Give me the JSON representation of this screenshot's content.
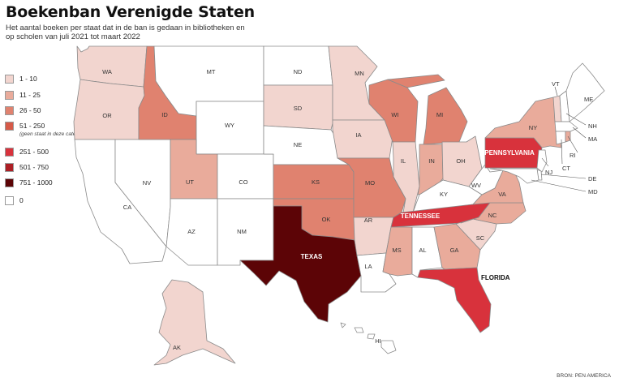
{
  "title": "Boekenban Verenigde Staten",
  "subtitle": "Het aantal boeken per staat dat in de ban is gedaan in bibliotheken en op scholen van juli 2021 tot maart 2022",
  "source": "BRON: PEN AMERICA",
  "legend": [
    {
      "label": "1 - 10",
      "color": "#f2d5cf"
    },
    {
      "label": "11 - 25",
      "color": "#e9ab9b"
    },
    {
      "label": "26 - 50",
      "color": "#e0826f"
    },
    {
      "label": "51 - 250",
      "color": "#d65a48",
      "note": "(geen staat in deze categorie)"
    },
    {
      "label": "251 - 500",
      "color": "#d8323c"
    },
    {
      "label": "501 - 750",
      "color": "#ad1f25"
    },
    {
      "label": "751 - 1000",
      "color": "#5c0406"
    },
    {
      "label": "0",
      "color": "#ffffff"
    }
  ],
  "states": {
    "WA": {
      "label": "WA",
      "color": "#f2d5cf"
    },
    "OR": {
      "label": "OR",
      "color": "#f2d5cf"
    },
    "CA": {
      "label": "CA",
      "color": "#ffffff"
    },
    "NV": {
      "label": "NV",
      "color": "#ffffff"
    },
    "ID": {
      "label": "ID",
      "color": "#e0826f"
    },
    "MT": {
      "label": "MT",
      "color": "#ffffff"
    },
    "WY": {
      "label": "WY",
      "color": "#ffffff"
    },
    "UT": {
      "label": "UT",
      "color": "#e9ab9b"
    },
    "AZ": {
      "label": "AZ",
      "color": "#ffffff"
    },
    "CO": {
      "label": "CO",
      "color": "#ffffff"
    },
    "NM": {
      "label": "NM",
      "color": "#ffffff"
    },
    "ND": {
      "label": "ND",
      "color": "#ffffff"
    },
    "SD": {
      "label": "SD",
      "color": "#f2d5cf"
    },
    "NE": {
      "label": "NE",
      "color": "#ffffff"
    },
    "KS": {
      "label": "KS",
      "color": "#e0826f"
    },
    "OK": {
      "label": "OK",
      "color": "#e0826f"
    },
    "TX": {
      "label": "TEXAS",
      "color": "#5c0406"
    },
    "MN": {
      "label": "MN",
      "color": "#f2d5cf"
    },
    "IA": {
      "label": "IA",
      "color": "#f2d5cf"
    },
    "MO": {
      "label": "MO",
      "color": "#e0826f"
    },
    "AR": {
      "label": "AR",
      "color": "#f2d5cf"
    },
    "LA": {
      "label": "LA",
      "color": "#ffffff"
    },
    "WI": {
      "label": "WI",
      "color": "#e0826f"
    },
    "IL": {
      "label": "IL",
      "color": "#f2d5cf"
    },
    "MI": {
      "label": "MI",
      "color": "#e0826f"
    },
    "IN": {
      "label": "IN",
      "color": "#e9ab9b"
    },
    "OH": {
      "label": "OH",
      "color": "#f2d5cf"
    },
    "KY": {
      "label": "KY",
      "color": "#ffffff"
    },
    "TN": {
      "label": "TENNESSEE",
      "color": "#d8323c"
    },
    "MS": {
      "label": "MS",
      "color": "#e9ab9b"
    },
    "AL": {
      "label": "AL",
      "color": "#ffffff"
    },
    "GA": {
      "label": "GA",
      "color": "#e9ab9b"
    },
    "FL": {
      "label": "FLORIDA",
      "color": "#d8323c"
    },
    "SC": {
      "label": "SC",
      "color": "#f2d5cf"
    },
    "NC": {
      "label": "NC",
      "color": "#e9ab9b"
    },
    "VA": {
      "label": "VA",
      "color": "#e9ab9b"
    },
    "WV": {
      "label": "WV",
      "color": "#ffffff"
    },
    "PA": {
      "label": "PENNSYLVANIA",
      "color": "#d8323c"
    },
    "NY": {
      "label": "NY",
      "color": "#e9ab9b"
    },
    "VT": {
      "label": "VT",
      "color": "#f2d5cf"
    },
    "NH": {
      "label": "NH",
      "color": "#ffffff"
    },
    "ME": {
      "label": "ME",
      "color": "#ffffff"
    },
    "MA": {
      "label": "MA",
      "color": "#ffffff"
    },
    "RI": {
      "label": "RI",
      "color": "#e9ab9b"
    },
    "CT": {
      "label": "CT",
      "color": "#ffffff"
    },
    "NJ": {
      "label": "NJ",
      "color": "#ffffff"
    },
    "DE": {
      "label": "DE",
      "color": "#ffffff"
    },
    "MD": {
      "label": "MD",
      "color": "#ffffff"
    },
    "AK": {
      "label": "AK",
      "color": "#f2d5cf"
    },
    "HI": {
      "label": "HI",
      "color": "#ffffff"
    }
  }
}
